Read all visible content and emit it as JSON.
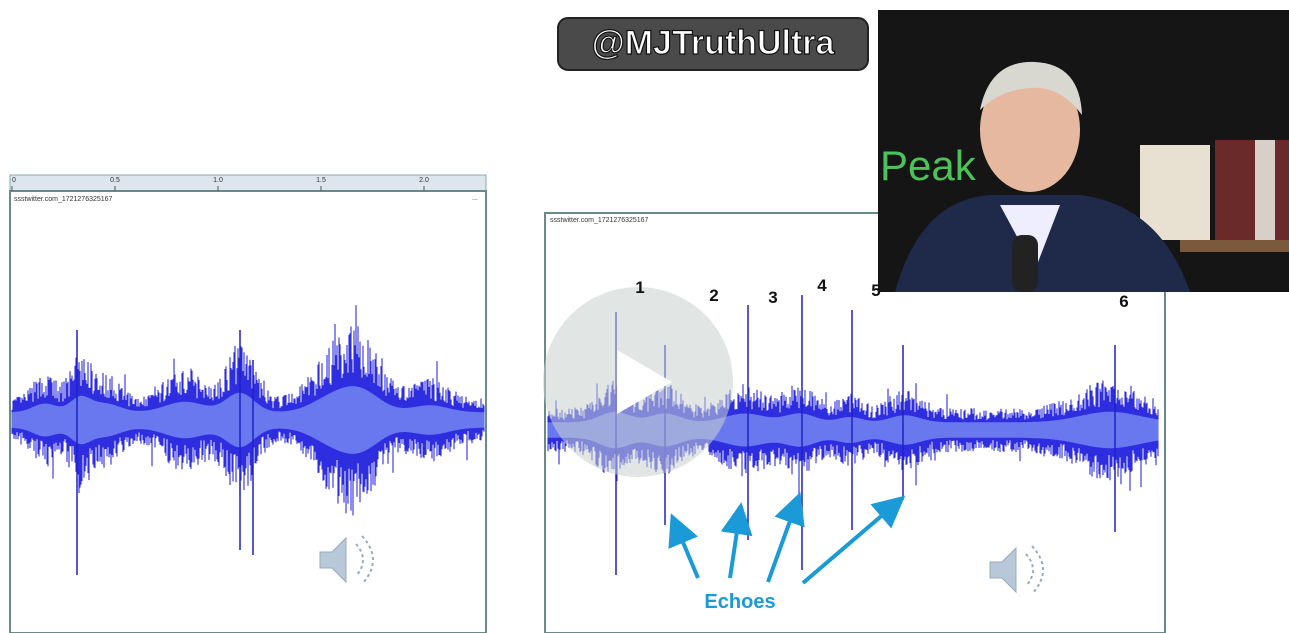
{
  "watermark": "@MJTruthUltra",
  "left_panel": {
    "ruler_labels": [
      "0",
      "0.5",
      "1.0",
      "1.5",
      "2.0"
    ],
    "file_name": "ssstwitter.com_1721276325167",
    "menu": "..."
  },
  "right_panel": {
    "file_name": "ssstwitter.com_1721276325167",
    "markers": [
      "1",
      "2",
      "3",
      "4",
      "5",
      "6"
    ],
    "annotation": "Echoes"
  },
  "photo": {
    "sign_text": "Peak"
  }
}
